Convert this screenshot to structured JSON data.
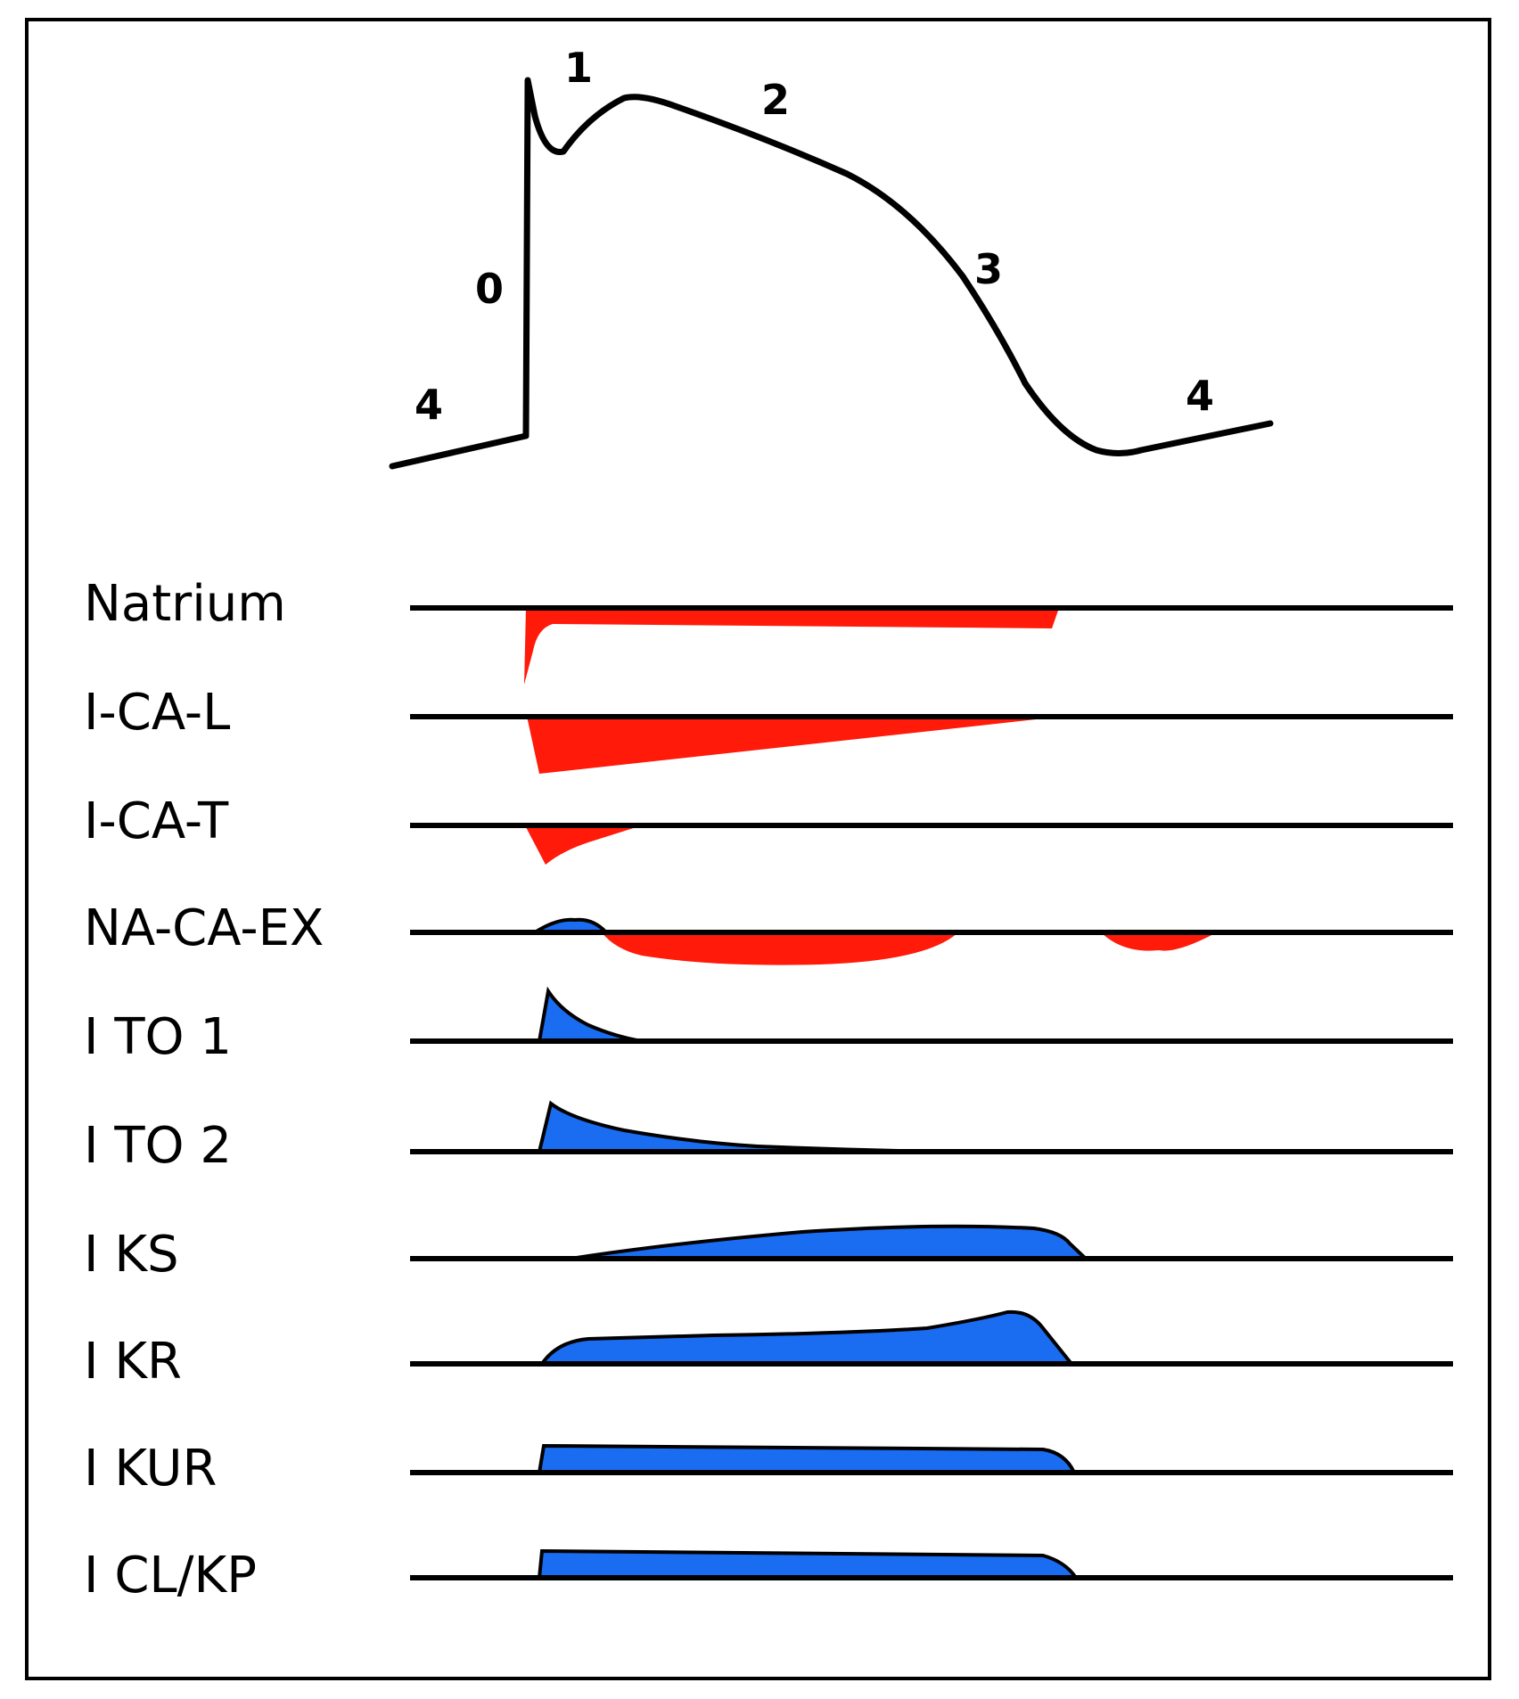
{
  "colors": {
    "inward": "#ff1a0a",
    "outward": "#1a6cf0",
    "ink": "#000000"
  },
  "action_potential": {
    "phase_labels": [
      "0",
      "1",
      "2",
      "3",
      "4",
      "4"
    ]
  },
  "currents": [
    {
      "name": "Natrium",
      "direction": "inward"
    },
    {
      "name": "I-CA-L",
      "direction": "inward"
    },
    {
      "name": "I-CA-T",
      "direction": "inward"
    },
    {
      "name": "NA-CA-EX",
      "direction": "outward-then-inward"
    },
    {
      "name": "I TO 1",
      "direction": "outward"
    },
    {
      "name": "I TO 2",
      "direction": "outward"
    },
    {
      "name": "I KS",
      "direction": "outward"
    },
    {
      "name": "I KR",
      "direction": "outward"
    },
    {
      "name": "I KUR",
      "direction": "outward"
    },
    {
      "name": "I CL/KP",
      "direction": "outward"
    }
  ]
}
